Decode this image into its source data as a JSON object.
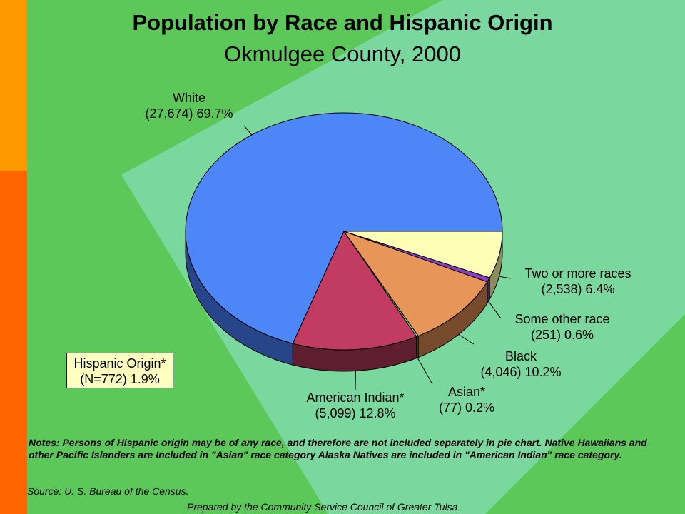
{
  "slide": {
    "title": "Population by Race and Hispanic Origin",
    "subtitle": "Okmulgee County, 2000",
    "notes": "Notes:  Persons of Hispanic origin may be of any race, and therefore are not included separately in pie chart. Native Hawaiians and other Pacific Islanders are Included in \"Asian\" race category  Alaska Natives are included in \"American Indian\" race category.",
    "source": "Source:  U. S. Bureau of the Census.",
    "prepared_by": "Prepared by the Community Service Council of Greater Tulsa"
  },
  "hispanic": {
    "line1": "Hispanic Origin*",
    "line2": "(N=772)  1.9%",
    "box_color": "#ffffc0"
  },
  "colors": {
    "background_green": "#5cc85a",
    "light_green": "#7ad89e",
    "orange_bar": "#ff9900",
    "red_orange_bar": "#ff6600"
  },
  "chart_data": {
    "type": "pie",
    "style": "3d",
    "slices": [
      {
        "label": "White",
        "count": 27674,
        "count_label": "(27,674)",
        "percent_label": "69.7%",
        "value": 69.7,
        "color": "#4d86f7",
        "side_color": "#27468a"
      },
      {
        "label": "American Indian*",
        "count": 5099,
        "count_label": "(5,099)",
        "percent_label": "12.8%",
        "value": 12.8,
        "color": "#c13c60",
        "side_color": "#5e1e30"
      },
      {
        "label": "Asian*",
        "count": 77,
        "count_label": "(77)",
        "percent_label": "0.2%",
        "value": 0.2,
        "color": "#7bd38a",
        "side_color": "#3d6a45"
      },
      {
        "label": "Black",
        "count": 4046,
        "count_label": "(4,046)",
        "percent_label": "10.2%",
        "value": 10.2,
        "color": "#e8955a",
        "side_color": "#764a2a"
      },
      {
        "label": "Some other race",
        "count": 251,
        "count_label": "(251)",
        "percent_label": "0.6%",
        "value": 0.6,
        "color": "#8a3fc1",
        "side_color": "#45205f"
      },
      {
        "label": "Two or more races",
        "count": 2538,
        "count_label": "(2,538)",
        "percent_label": "6.4%",
        "value": 6.4,
        "color": "#ffffb8",
        "side_color": "#8b8b5c"
      }
    ]
  }
}
